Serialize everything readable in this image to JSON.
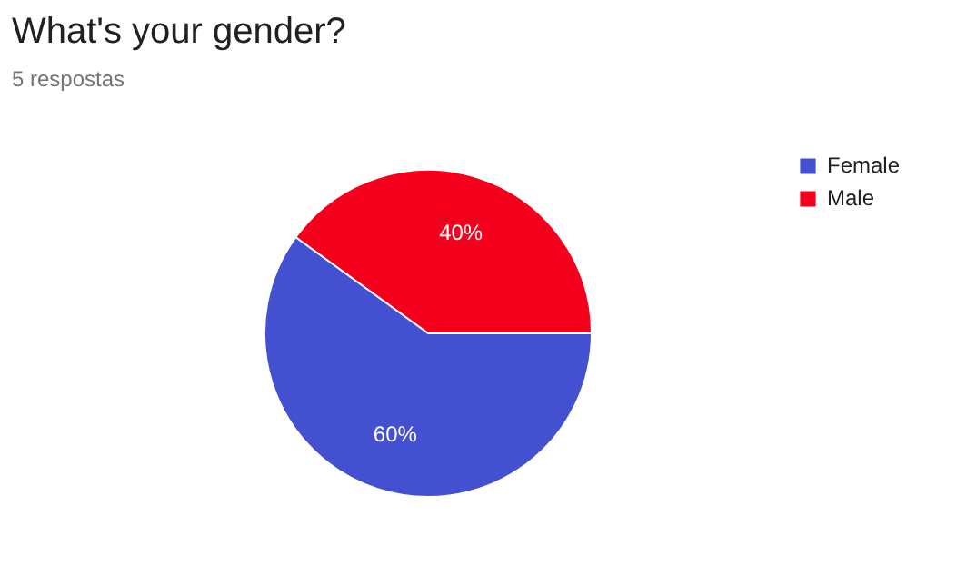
{
  "chart_data": {
    "type": "pie",
    "title": "What's your gender?",
    "subtitle": "5 respostas",
    "categories": [
      "Female",
      "Male"
    ],
    "values": [
      60,
      40
    ],
    "colors": [
      "#4350cf",
      "#f5001c"
    ],
    "value_labels": [
      "60%",
      "40%"
    ],
    "legend": "right"
  }
}
